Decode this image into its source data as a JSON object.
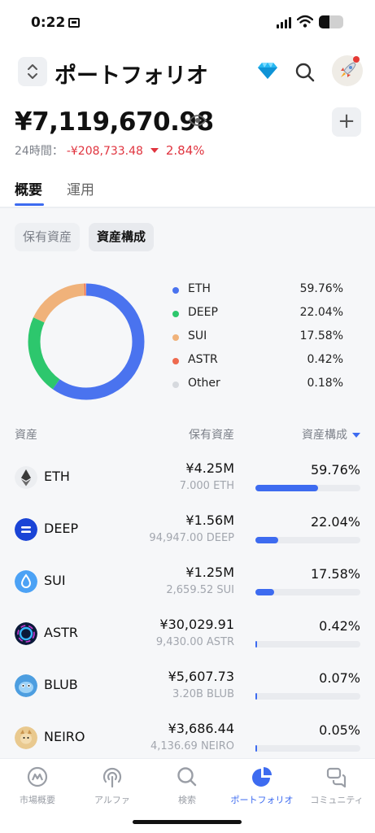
{
  "status": {
    "time": "0:22"
  },
  "header": {
    "title": "ポートフォリオ"
  },
  "summary": {
    "balance": "¥7,119,670.98",
    "change_label": "24時間：",
    "change_value": "-¥208,733.48",
    "change_pct": "2.84%"
  },
  "tabs": [
    {
      "label": "概要"
    },
    {
      "label": "運用"
    }
  ],
  "chips": [
    {
      "label": "保有資産"
    },
    {
      "label": "資産構成"
    }
  ],
  "allocation": [
    {
      "name": "ETH",
      "pct": "59.76%",
      "value": 59.76,
      "color": "#4a73ef"
    },
    {
      "name": "DEEP",
      "pct": "22.04%",
      "value": 22.04,
      "color": "#2dc76d"
    },
    {
      "name": "SUI",
      "pct": "17.58%",
      "value": 17.58,
      "color": "#f0b27a"
    },
    {
      "name": "ASTR",
      "pct": "0.42%",
      "value": 0.42,
      "color": "#ee6a4f"
    },
    {
      "name": "Other",
      "pct": "0.18%",
      "value": 0.18,
      "color": "#d6d9de"
    }
  ],
  "table": {
    "headers": {
      "asset": "資産",
      "holdings": "保有資産",
      "composition": "資産構成"
    },
    "rows": [
      {
        "name": "ETH",
        "value": "¥4.25M",
        "amount": "7.000 ETH",
        "pct": "59.76%",
        "share": 0.5976
      },
      {
        "name": "DEEP",
        "value": "¥1.56M",
        "amount": "94,947.00 DEEP",
        "pct": "22.04%",
        "share": 0.2204
      },
      {
        "name": "SUI",
        "value": "¥1.25M",
        "amount": "2,659.52 SUI",
        "pct": "17.58%",
        "share": 0.1758
      },
      {
        "name": "ASTR",
        "value": "¥30,029.91",
        "amount": "9,430.00 ASTR",
        "pct": "0.42%",
        "share": 0.0042
      },
      {
        "name": "BLUB",
        "value": "¥5,607.73",
        "amount": "3.20B BLUB",
        "pct": "0.07%",
        "share": 0.0007
      },
      {
        "name": "NEIRO",
        "value": "¥3,686.44",
        "amount": "4,136.69 NEIRO",
        "pct": "0.05%",
        "share": 0.0005
      }
    ]
  },
  "nav": [
    {
      "label": "市場概要",
      "icon": "market-icon"
    },
    {
      "label": "アルファ",
      "icon": "alpha-icon"
    },
    {
      "label": "検索",
      "icon": "search-icon"
    },
    {
      "label": "ポートフォリオ",
      "icon": "portfolio-icon",
      "active": true
    },
    {
      "label": "コミュニティ",
      "icon": "community-icon"
    }
  ],
  "colors": {
    "accent": "#3d6bf0",
    "negative": "#e0343f"
  }
}
